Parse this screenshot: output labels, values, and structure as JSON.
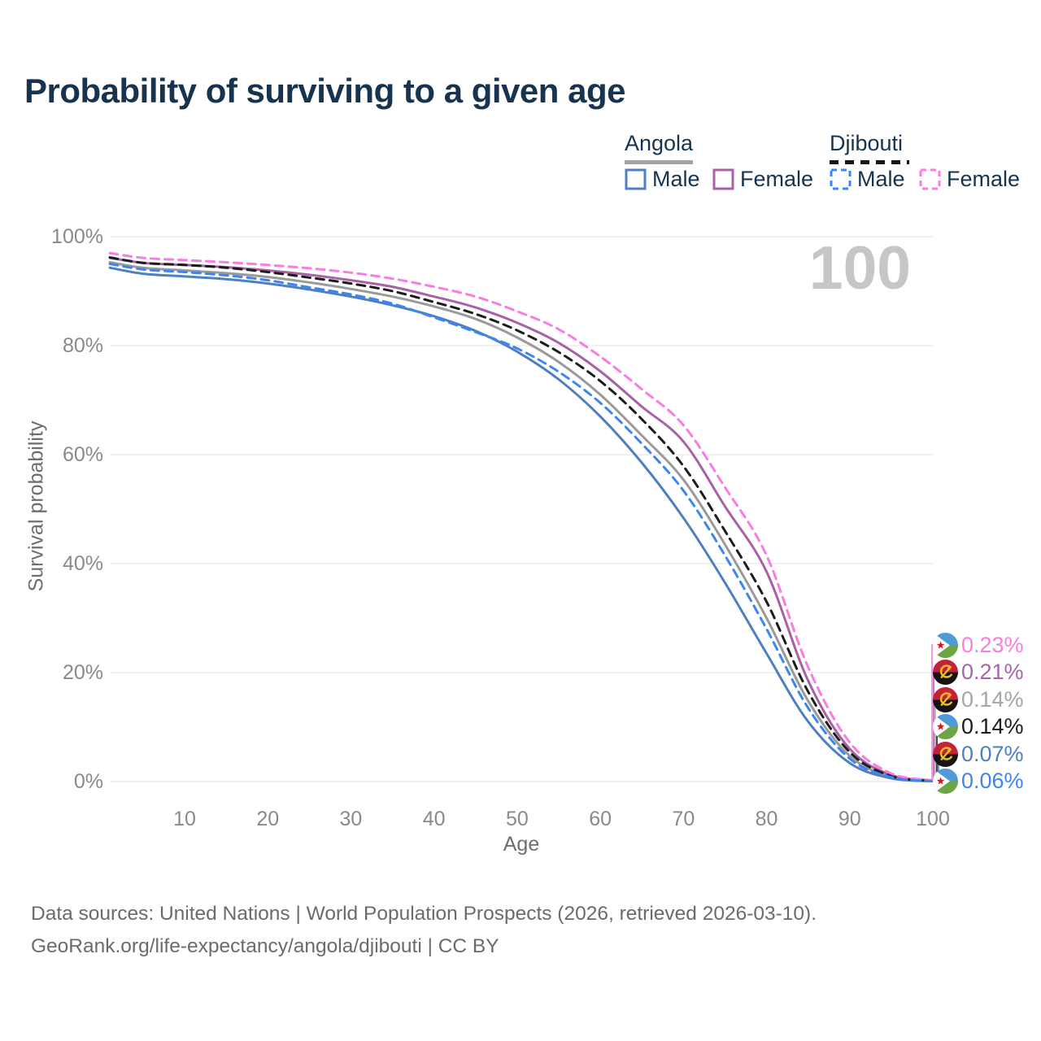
{
  "title": "Probability of surviving to a given age",
  "watermark": "100",
  "legend": {
    "groups": [
      {
        "country": "Angola",
        "line_style": "solid",
        "underline_color": "#a3a3a3",
        "underline_width": 84,
        "items": [
          {
            "label": "Male",
            "color": "#4f7fbe"
          },
          {
            "label": "Female",
            "color": "#a861a5"
          }
        ]
      },
      {
        "country": "Djibouti",
        "line_style": "dashed",
        "underline_color": "#161616",
        "underline_width": 98,
        "items": [
          {
            "label": "Male",
            "color": "#3d85f0"
          },
          {
            "label": "Female",
            "color": "#f97ce3"
          }
        ]
      }
    ]
  },
  "axes": {
    "y_title": "Survival probability",
    "x_title": "Age",
    "y_ticks": [
      {
        "value": 0,
        "label": "0%"
      },
      {
        "value": 20,
        "label": "20%"
      },
      {
        "value": 40,
        "label": "40%"
      },
      {
        "value": 60,
        "label": "60%"
      },
      {
        "value": 80,
        "label": "80%"
      },
      {
        "value": 100,
        "label": "100%"
      }
    ],
    "x_ticks": [
      {
        "value": 10,
        "label": "10"
      },
      {
        "value": 20,
        "label": "20"
      },
      {
        "value": 30,
        "label": "30"
      },
      {
        "value": 40,
        "label": "40"
      },
      {
        "value": 50,
        "label": "50"
      },
      {
        "value": 60,
        "label": "60"
      },
      {
        "value": 70,
        "label": "70"
      },
      {
        "value": 80,
        "label": "80"
      },
      {
        "value": 90,
        "label": "90"
      },
      {
        "value": 100,
        "label": "100"
      }
    ]
  },
  "chart_data": {
    "type": "line",
    "title": "Probability of surviving to a given age",
    "xlabel": "Age",
    "ylabel": "Survival probability",
    "xlim": [
      1,
      100
    ],
    "ylim": [
      0,
      100
    ],
    "grid": "horizontal",
    "legend_position": "top-right",
    "x": [
      1,
      5,
      10,
      15,
      20,
      25,
      30,
      35,
      40,
      45,
      50,
      55,
      60,
      65,
      70,
      75,
      80,
      85,
      90,
      95,
      100
    ],
    "series": [
      {
        "name": "Angola Both sexes",
        "country": "Angola",
        "group": "Both sexes",
        "color": "#9a9a9a",
        "dash": false,
        "values": [
          95.3,
          94.3,
          93.8,
          93.3,
          92.6,
          91.6,
          90.4,
          89.0,
          87.2,
          84.9,
          81.5,
          77.0,
          71.0,
          63.5,
          55.4,
          43.5,
          30.0,
          14.8,
          4.7,
          0.9,
          0.14
        ]
      },
      {
        "name": "Angola Female",
        "country": "Angola",
        "group": "Female",
        "color": "#a861a5",
        "dash": false,
        "values": [
          96.1,
          95.2,
          94.8,
          94.4,
          93.8,
          93.0,
          92.0,
          90.8,
          89.0,
          87.0,
          84.2,
          80.5,
          75.3,
          68.8,
          62.4,
          50.5,
          38.5,
          18.5,
          6.0,
          1.2,
          0.21
        ]
      },
      {
        "name": "Angola Male",
        "country": "Angola",
        "group": "Male",
        "color": "#4f7fbe",
        "dash": false,
        "values": [
          94.3,
          93.2,
          92.7,
          92.2,
          91.4,
          90.3,
          89.0,
          87.4,
          85.4,
          82.7,
          78.9,
          73.8,
          67.0,
          58.5,
          48.4,
          36.5,
          23.5,
          11.0,
          3.4,
          0.6,
          0.07
        ]
      },
      {
        "name": "Djibouti Both sexes",
        "country": "Djibouti",
        "group": "Both sexes",
        "color": "#1c1c1c",
        "dash": true,
        "values": [
          96.2,
          95.2,
          94.8,
          94.3,
          93.5,
          92.5,
          91.4,
          90.0,
          88.0,
          85.8,
          82.8,
          78.8,
          73.5,
          66.5,
          57.9,
          46.0,
          33.0,
          16.5,
          5.4,
          1.0,
          0.14
        ]
      },
      {
        "name": "Djibouti Female",
        "country": "Djibouti",
        "group": "Female",
        "color": "#f97ce3",
        "dash": true,
        "values": [
          97.0,
          96.1,
          95.7,
          95.3,
          94.8,
          94.2,
          93.4,
          92.3,
          90.8,
          89.0,
          86.3,
          83.0,
          78.0,
          72.0,
          65.4,
          54.0,
          41.5,
          21.0,
          7.2,
          1.5,
          0.23
        ]
      },
      {
        "name": "Djibouti Male",
        "country": "Djibouti",
        "group": "Male",
        "color": "#3d85f0",
        "dash": true,
        "values": [
          95.0,
          94.0,
          93.5,
          92.9,
          92.0,
          90.7,
          89.4,
          87.7,
          85.2,
          82.5,
          79.5,
          75.2,
          69.5,
          62.0,
          53.4,
          41.5,
          28.0,
          13.5,
          4.2,
          0.8,
          0.06
        ]
      }
    ],
    "end_labels": [
      {
        "value": "0.23%",
        "series": "Djibouti Female",
        "flag": "djibouti",
        "color": "#f97ce3",
        "end_value": 0.23
      },
      {
        "value": "0.21%",
        "series": "Angola Female",
        "flag": "angola",
        "color": "#a864a8",
        "end_value": 0.21
      },
      {
        "value": "0.14%",
        "series": "Angola Both sexes",
        "flag": "angola",
        "color": "#a6a6a6",
        "end_value": 0.14
      },
      {
        "value": "0.14%",
        "series": "Djibouti Both sexes",
        "flag": "djibouti",
        "color": "#1c1c1c",
        "end_value": 0.14
      },
      {
        "value": "0.07%",
        "series": "Angola Male",
        "flag": "angola",
        "color": "#4f7fbe",
        "end_value": 0.07
      },
      {
        "value": "0.06%",
        "series": "Djibouti Male",
        "flag": "djibouti",
        "color": "#3d85f0",
        "end_value": 0.06
      }
    ]
  },
  "footer": {
    "line1": "Data sources: United Nations | World Population Prospects (2026, retrieved 2026-03-10).",
    "line2": "GeoRank.org/life-expectancy/angola/djibouti | CC BY"
  }
}
